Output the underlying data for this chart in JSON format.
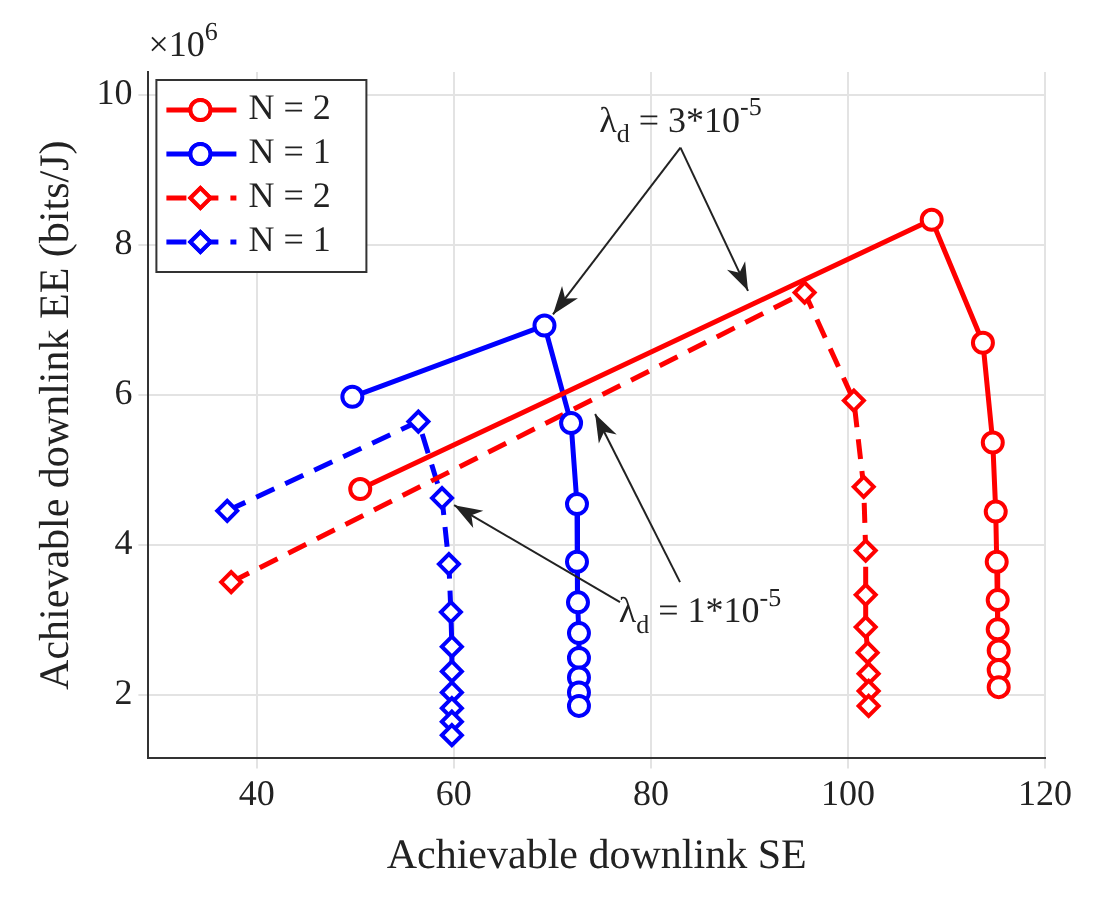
{
  "chart_data": {
    "type": "line",
    "xlabel": "Achievable downlink SE",
    "ylabel": "Achievable downlink EE (bits/J)",
    "xlim": [
      29,
      120
    ],
    "xticks": [
      40,
      60,
      80,
      100,
      120
    ],
    "ylim": [
      1.15,
      10.3
    ],
    "yticks": [
      2,
      4,
      6,
      8,
      10
    ],
    "grid": true,
    "legend": "top left",
    "series": [
      {
        "name": "N = 2",
        "color": "#ff0000",
        "marker": "circle",
        "line_style": "solid",
        "x": [
          50.5,
          108.5,
          113.7,
          114.7,
          115,
          115.1,
          115.2,
          115.2,
          115.3,
          115.3,
          115.3
        ],
        "values": [
          4.74,
          8.33,
          6.69,
          5.36,
          4.44,
          3.77,
          3.26,
          2.87,
          2.59,
          2.33,
          2.1
        ]
      },
      {
        "name": "N = 1",
        "color": "#0000ff",
        "marker": "circle",
        "line_style": "solid",
        "x": [
          49.7,
          69.2,
          71.9,
          72.5,
          72.5,
          72.6,
          72.7,
          72.7,
          72.7,
          72.7,
          72.7
        ],
        "values": [
          5.97,
          6.92,
          5.62,
          4.54,
          3.77,
          3.23,
          2.82,
          2.49,
          2.23,
          2.03,
          1.85
        ]
      },
      {
        "name": "N = 2",
        "color": "#ff0000",
        "marker": "diamond",
        "line_style": "dashed",
        "x": [
          37.4,
          95.6,
          100.6,
          101.6,
          101.8,
          101.8,
          101.8,
          102,
          102.1,
          102.1,
          102.1
        ],
        "values": [
          3.5,
          7.36,
          5.92,
          4.77,
          3.92,
          3.33,
          2.9,
          2.56,
          2.28,
          2.05,
          1.85
        ]
      },
      {
        "name": "N = 1",
        "color": "#0000ff",
        "marker": "diamond",
        "line_style": "dashed",
        "x": [
          37,
          56.4,
          58.8,
          59.5,
          59.7,
          59.8,
          59.8,
          59.8,
          59.8,
          59.8,
          59.8
        ],
        "values": [
          4.45,
          5.64,
          4.62,
          3.74,
          3.1,
          2.64,
          2.31,
          2.03,
          1.82,
          1.64,
          1.46
        ]
      }
    ],
    "annotations": [
      {
        "text": "λ$_{d}$ = 3*10$^{-5}$",
        "x": 69.2,
        "y": 6.92
      },
      {
        "text": "λ$_{d}$ = 1*10$^{-5}$",
        "x": 58.8,
        "y": 4.62
      },
      "×10$^{6}$"
    ]
  }
}
